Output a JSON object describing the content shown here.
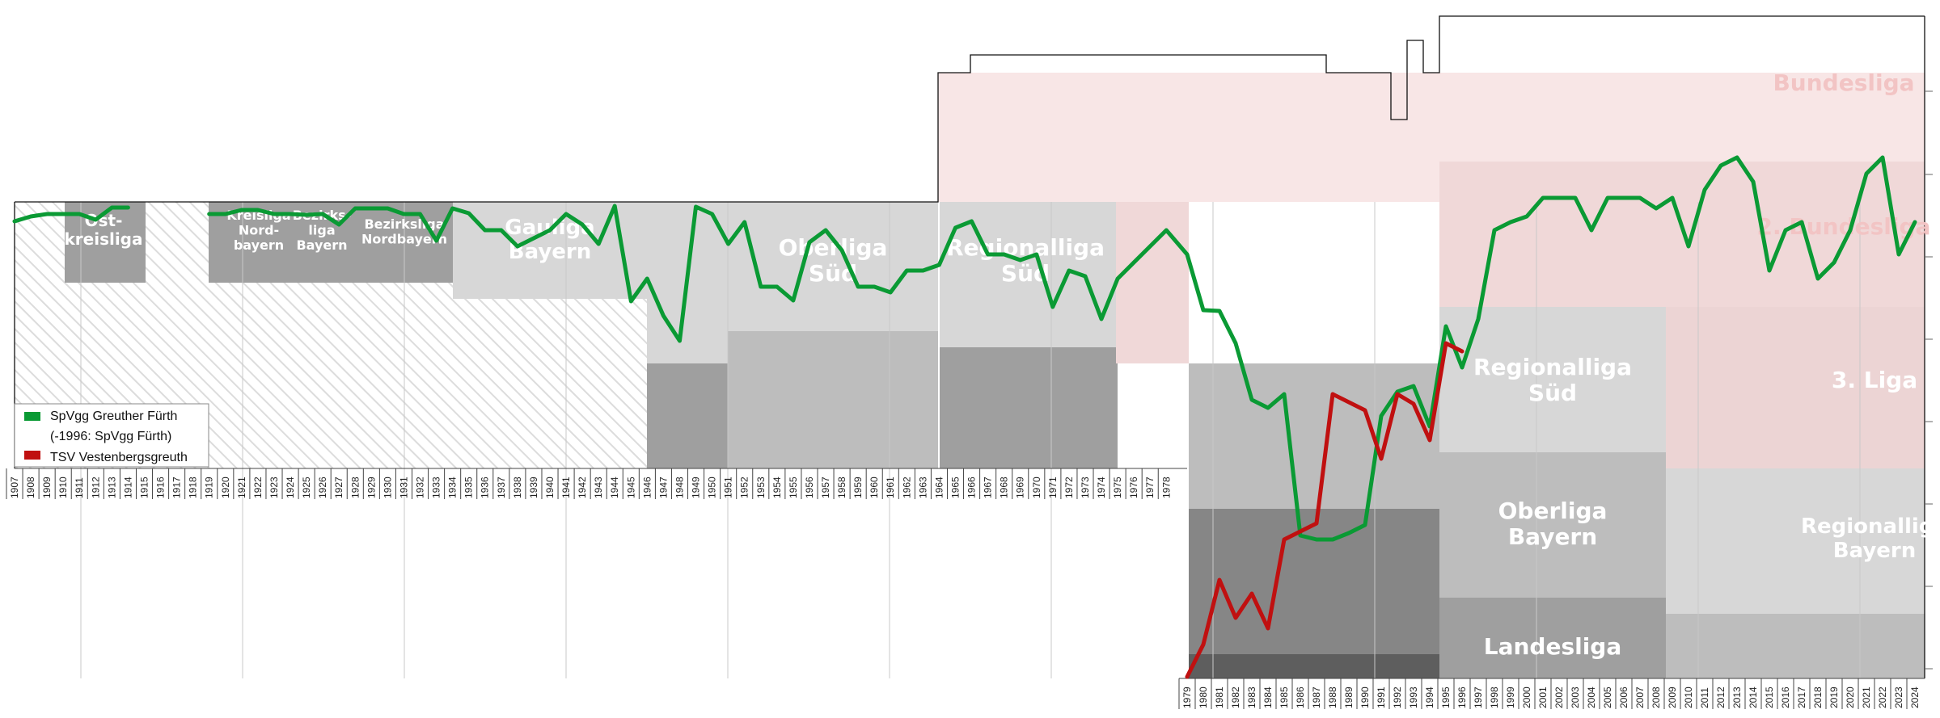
{
  "chart_data": {
    "type": "line",
    "title": "",
    "xlabel": "",
    "ylabel": "",
    "x_axis": "season start year",
    "legend_position": "bottom-left",
    "y_scale": "league position (higher = better level)",
    "colors": {
      "furth": "#0a9a34",
      "vestenbergsgreuth": "#c01010",
      "bundesliga": "#f8e6e6",
      "zweite_bundesliga": "#f0d8d8",
      "dritte_liga": "#ecd4d4",
      "level_light": "#d7d7d7",
      "level_mid": "#bdbdbd",
      "level_dark": "#9f9f9f",
      "level_darker": "#868686",
      "level_darkest": "#5e5e5e"
    },
    "legend": [
      {
        "label": "SpVgg Greuther Fürth",
        "color": "#0a9a34"
      },
      {
        "label": "(-1996: SpVgg Fürth)",
        "color": ""
      },
      {
        "label": "TSV Vestenbergsgreuth",
        "color": "#c01010"
      }
    ],
    "league_labels": [
      {
        "text": "Bundesliga",
        "lines": [
          "Bundesliga"
        ]
      },
      {
        "text": "2. Bundesliga",
        "lines": [
          "2. Bundesliga"
        ]
      },
      {
        "text": "3. Liga",
        "lines": [
          "3. Liga"
        ]
      },
      {
        "text": "Regionalliga Süd",
        "lines": [
          "Regionalliga",
          "Süd"
        ]
      },
      {
        "text": "Oberliga Bayern",
        "lines": [
          "Oberliga",
          "Bayern"
        ]
      },
      {
        "text": "Landesliga",
        "lines": [
          "Landesliga"
        ]
      },
      {
        "text": "Regionalliga Bayern",
        "lines": [
          "Regionalliga",
          "Bayern"
        ]
      },
      {
        "text": "Oberliga Süd",
        "lines": [
          "Oberliga",
          "Süd"
        ]
      },
      {
        "text": "Regionalliga Süd",
        "lines": [
          "Regionalliga",
          "Süd"
        ]
      },
      {
        "text": "Gauliga Bayern",
        "lines": [
          "Gauliga",
          "Bayern"
        ]
      },
      {
        "text": "Bezirksliga Nordbayern",
        "lines": [
          "Bezirksliga",
          "Nordbayern"
        ]
      },
      {
        "text": "Bezirksliga Bayern",
        "lines": [
          "Bezirks-",
          "liga",
          "Bayern"
        ]
      },
      {
        "text": "Kreisliga Nordbayern",
        "lines": [
          "Kreisliga",
          "Nord-",
          "bayern"
        ]
      },
      {
        "text": "Ostkreisliga",
        "lines": [
          "Ost-",
          "kreisliga"
        ]
      }
    ],
    "years_top": [
      "1907",
      "1908",
      "1909",
      "1910",
      "1911",
      "1912",
      "1913",
      "1914",
      "1915",
      "1916",
      "1917",
      "1918",
      "1919",
      "1920",
      "1921",
      "1922",
      "1923",
      "1924",
      "1925",
      "1926",
      "1927",
      "1928",
      "1929",
      "1930",
      "1931",
      "1932",
      "1933",
      "1934",
      "1935",
      "1936",
      "1937",
      "1938",
      "1939",
      "1940",
      "1941",
      "1942",
      "1943",
      "1944",
      "1945",
      "1946",
      "1947",
      "1948",
      "1949",
      "1950",
      "1951",
      "1952",
      "1953",
      "1954",
      "1955",
      "1956",
      "1957",
      "1958",
      "1959",
      "1960",
      "1961",
      "1962",
      "1963",
      "1964",
      "1965",
      "1966",
      "1967",
      "1968",
      "1969",
      "1970",
      "1971",
      "1972",
      "1973",
      "1974",
      "1975",
      "1976",
      "1977",
      "1978"
    ],
    "years_bottom": [
      "1979",
      "1980",
      "1981",
      "1982",
      "1983",
      "1984",
      "1985",
      "1986",
      "1987",
      "1988",
      "1989",
      "1990",
      "1991",
      "1992",
      "1993",
      "1994",
      "1995",
      "1996",
      "1997",
      "1998",
      "1999",
      "2000",
      "2001",
      "2002",
      "2003",
      "2004",
      "2005",
      "2006",
      "2007",
      "2008",
      "2009",
      "2010",
      "2011",
      "2012",
      "2013",
      "2014",
      "2015",
      "2016",
      "2017",
      "2018",
      "2019",
      "2020",
      "2021",
      "2022",
      "2023",
      "2024"
    ],
    "series": [
      {
        "name": "SpVgg Greuther Fürth",
        "x": [
          1907,
          1908,
          1909,
          1910,
          1911,
          1912,
          1913,
          1914,
          1919,
          1920,
          1921,
          1922,
          1923,
          1924,
          1925,
          1926,
          1927,
          1928,
          1929,
          1930,
          1931,
          1932,
          1933,
          1934,
          1935,
          1936,
          1937,
          1938,
          1939,
          1940,
          1941,
          1942,
          1943,
          1944,
          1945,
          1946,
          1947,
          1948,
          1949,
          1950,
          1951,
          1952,
          1953,
          1954,
          1955,
          1956,
          1957,
          1958,
          1959,
          1960,
          1961,
          1962,
          1963,
          1964,
          1965,
          1966,
          1967,
          1968,
          1969,
          1970,
          1971,
          1972,
          1973,
          1974,
          1975,
          1976,
          1977,
          1978,
          1979,
          1980,
          1981,
          1982,
          1983,
          1984,
          1985,
          1986,
          1987,
          1988,
          1989,
          1990,
          1991,
          1992,
          1993,
          1994,
          1995,
          1996,
          1997,
          1998,
          1999,
          2000,
          2001,
          2002,
          2003,
          2004,
          2005,
          2006,
          2007,
          2008,
          2009,
          2010,
          2011,
          2012,
          2013,
          2014,
          2015,
          2016,
          2017,
          2018,
          2019,
          2020,
          2021,
          2022,
          2023,
          2024
        ],
        "y": [
          274,
          268,
          265,
          265,
          265,
          272,
          257,
          257,
          265,
          265,
          260,
          260,
          265,
          265,
          266,
          265,
          278,
          258,
          258,
          258,
          265,
          265,
          298,
          258,
          264,
          285,
          285,
          305,
          295,
          285,
          265,
          278,
          302,
          255,
          373,
          345,
          391,
          422,
          256,
          265,
          302,
          275,
          355,
          355,
          372,
          300,
          285,
          310,
          355,
          355,
          362,
          335,
          335,
          328,
          282,
          274,
          315,
          315,
          322,
          315,
          380,
          335,
          342,
          395,
          345,
          325,
          305,
          285,
          315,
          384,
          385,
          425,
          495,
          505,
          488,
          663,
          668,
          668,
          660,
          650,
          515,
          485,
          478,
          528,
          404,
          455,
          395,
          285,
          275,
          268,
          245,
          245,
          245,
          285,
          245,
          245,
          245,
          258,
          245,
          305,
          235,
          205,
          195,
          225,
          335,
          285,
          275,
          345,
          325,
          285,
          215,
          195,
          315,
          275
        ]
      },
      {
        "name": "TSV Vestenbergsgreuth",
        "x": [
          1979,
          1980,
          1981,
          1982,
          1983,
          1984,
          1985,
          1986,
          1987,
          1988,
          1989,
          1990,
          1991,
          1992,
          1993,
          1994,
          1995,
          1996
        ],
        "y": [
          838,
          798,
          718,
          765,
          735,
          778,
          668,
          658,
          648,
          488,
          498,
          508,
          568,
          488,
          500,
          545,
          425,
          435
        ]
      }
    ]
  }
}
